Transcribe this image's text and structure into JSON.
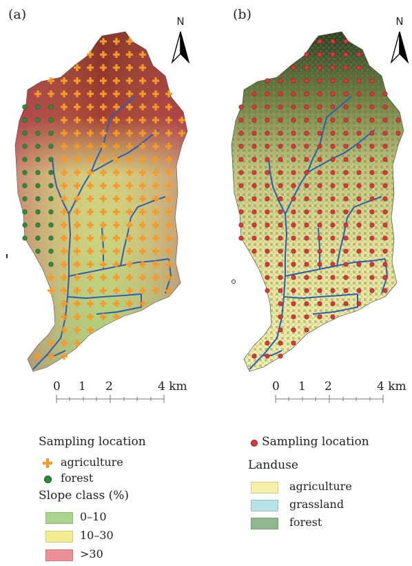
{
  "panels": {
    "a": {
      "label": "(a)",
      "north": "N",
      "scale": {
        "ticks": [
          "0",
          "1",
          "2",
          "4 km"
        ]
      },
      "legend": {
        "sampling_title": "Sampling location",
        "sampling_items": [
          {
            "label": "agriculture",
            "color": "#f39a2b",
            "symbol": "cross"
          },
          {
            "label": "forest",
            "color": "#2e8b3a",
            "symbol": "dot"
          }
        ],
        "slope_title": "Slope class (%)",
        "slope_items": [
          {
            "label": "0–10",
            "color": "#a9d58f"
          },
          {
            "label": "10–30",
            "color": "#f2ec92"
          },
          {
            "label": ">30",
            "color": "#ee8e96"
          }
        ]
      }
    },
    "b": {
      "label": "(b)",
      "north": "N",
      "scale": {
        "ticks": [
          "0",
          "1",
          "2",
          "4 km"
        ]
      },
      "legend": {
        "sampling_label": "Sampling location",
        "sampling_color": "#d83a3a",
        "landuse_title": "Landuse",
        "landuse_items": [
          {
            "label": "agriculture",
            "color": "#f4f0a8"
          },
          {
            "label": "grassland",
            "color": "#b8e2e4"
          },
          {
            "label": "forest",
            "color": "#8fb88c"
          }
        ]
      }
    }
  },
  "colors": {
    "stream": "#2b5db4",
    "steep": "#8e2323",
    "moderate": "#d8d88a",
    "flat": "#9ccb7c",
    "forest_dark": "#2f4f2a"
  }
}
